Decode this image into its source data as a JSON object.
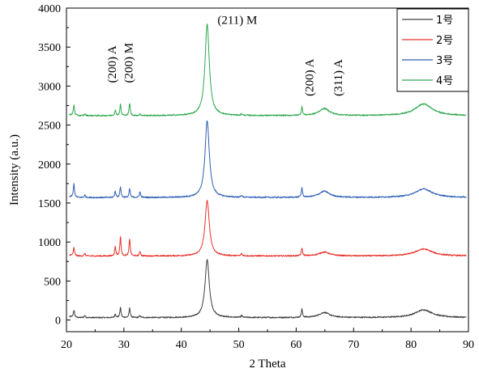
{
  "chart_data": {
    "type": "line",
    "title": "",
    "xlabel": "2 Theta",
    "ylabel": "Intensity (a.u.)",
    "xlim": [
      20,
      90
    ],
    "ylim": [
      -150,
      4000
    ],
    "x_ticks": [
      20,
      30,
      40,
      50,
      60,
      70,
      80,
      90
    ],
    "y_ticks": [
      0,
      500,
      1000,
      1500,
      2000,
      2500,
      3000,
      3500,
      4000
    ],
    "grid": false,
    "legend_position": "top-right",
    "series": [
      {
        "name": "1号",
        "color": "#404040",
        "baseline": 30,
        "peaks": [
          [
            21.3,
            90
          ],
          [
            23.2,
            30
          ],
          [
            28.5,
            50
          ],
          [
            29.4,
            130
          ],
          [
            31.0,
            120
          ],
          [
            32.8,
            25
          ],
          [
            44.5,
            740
          ],
          [
            50.5,
            25
          ],
          [
            61.0,
            105
          ],
          [
            64.9,
            65
          ],
          [
            82.2,
            100
          ]
        ]
      },
      {
        "name": "2号",
        "color": "#e8322b",
        "baseline": 820,
        "peaks": [
          [
            21.3,
            100
          ],
          [
            23.2,
            35
          ],
          [
            28.5,
            120
          ],
          [
            29.4,
            250
          ],
          [
            31.0,
            220
          ],
          [
            32.8,
            60
          ],
          [
            44.5,
            710
          ],
          [
            50.5,
            30
          ],
          [
            61.0,
            100
          ],
          [
            64.9,
            50
          ],
          [
            82.2,
            90
          ]
        ]
      },
      {
        "name": "3号",
        "color": "#2f5fb5",
        "baseline": 1570,
        "peaks": [
          [
            21.3,
            170
          ],
          [
            23.2,
            30
          ],
          [
            28.5,
            80
          ],
          [
            29.4,
            140
          ],
          [
            31.0,
            110
          ],
          [
            32.8,
            70
          ],
          [
            44.5,
            980
          ],
          [
            50.5,
            25
          ],
          [
            61.0,
            120
          ],
          [
            64.9,
            80
          ],
          [
            82.2,
            110
          ]
        ]
      },
      {
        "name": "4号",
        "color": "#2fa84f",
        "baseline": 2620,
        "peaks": [
          [
            21.3,
            130
          ],
          [
            23.2,
            20
          ],
          [
            28.5,
            70
          ],
          [
            29.4,
            140
          ],
          [
            31.0,
            160
          ],
          [
            32.8,
            20
          ],
          [
            44.5,
            1170
          ],
          [
            50.5,
            20
          ],
          [
            61.0,
            110
          ],
          [
            64.9,
            90
          ],
          [
            82.2,
            150
          ]
        ]
      }
    ],
    "annotations": [
      {
        "text": "(200) A",
        "x": 28.6,
        "y": 3040,
        "rotate": true
      },
      {
        "text": "(200) M",
        "x": 31.5,
        "y": 3040,
        "rotate": true
      },
      {
        "text": "(211) M",
        "x": 46.3,
        "y": 3800,
        "rotate": false
      },
      {
        "text": "(200) A",
        "x": 63.0,
        "y": 2870,
        "rotate": true
      },
      {
        "text": "(311) A",
        "x": 68.0,
        "y": 2870,
        "rotate": true
      }
    ]
  }
}
